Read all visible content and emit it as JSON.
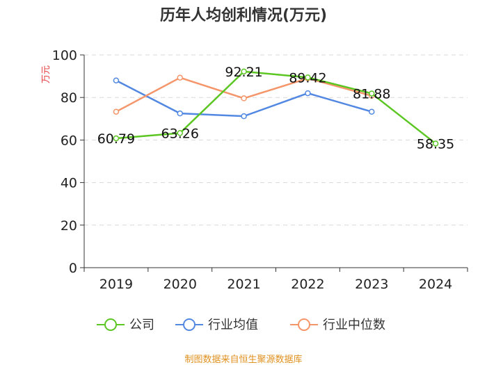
{
  "chart_data": {
    "type": "line",
    "title": "历年人均创利情况(万元)",
    "ylabel": "万元",
    "xlabel": "",
    "categories": [
      "2019",
      "2020",
      "2021",
      "2022",
      "2023",
      "2024"
    ],
    "ylim": [
      0,
      100
    ],
    "yticks": [
      0,
      20,
      40,
      60,
      80,
      100
    ],
    "grid": true,
    "legend_position": "bottom",
    "series": [
      {
        "name": "公司",
        "color": "#5cc623",
        "values": [
          60.79,
          63.26,
          92.21,
          89.42,
          81.88,
          58.35
        ],
        "labels": [
          "60.79",
          "63.26",
          "92.21",
          "89.42",
          "81.88",
          "58.35"
        ]
      },
      {
        "name": "行业均值",
        "color": "#5288e2",
        "values": [
          88.0,
          72.5,
          71.2,
          82.0,
          73.3,
          null
        ]
      },
      {
        "name": "行业中位数",
        "color": "#f4956a",
        "values": [
          73.3,
          89.3,
          79.6,
          89.0,
          80.8,
          null
        ]
      }
    ],
    "source": "制图数据来自恒生聚源数据库"
  }
}
